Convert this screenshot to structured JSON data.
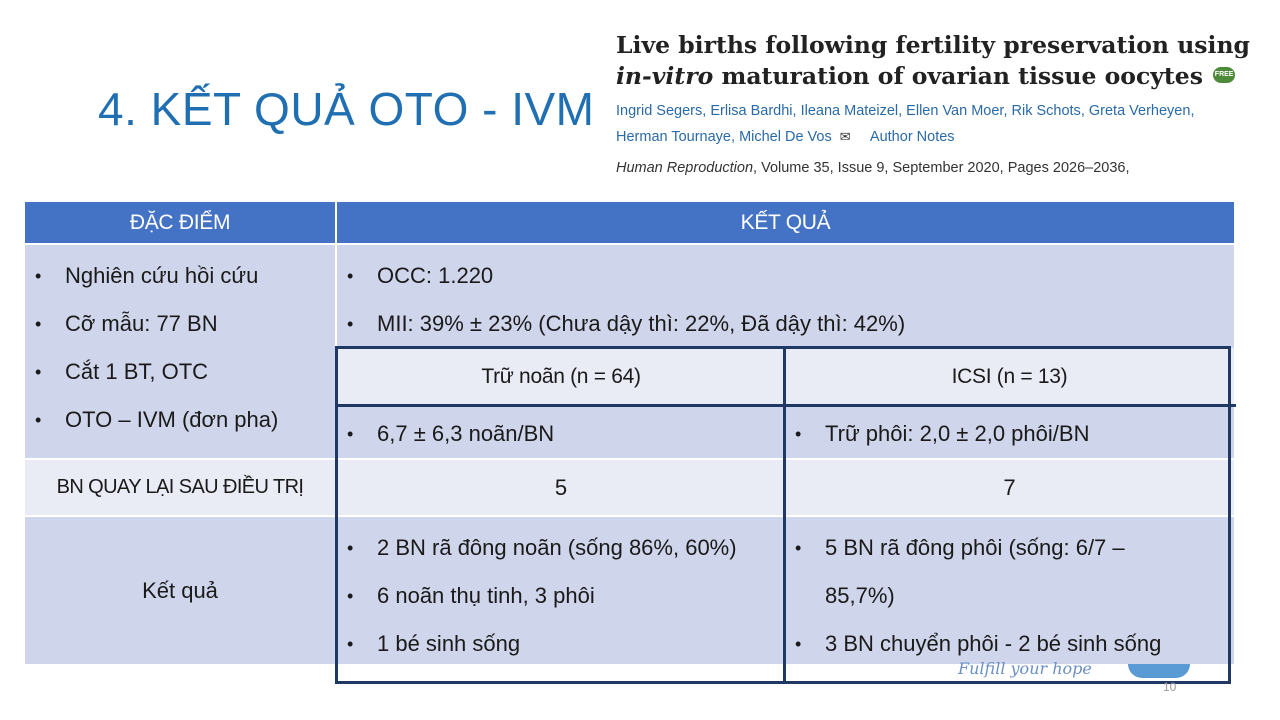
{
  "slide": {
    "title": "4. KẾT QUẢ OTO - IVM",
    "page_number": "10",
    "watermark": "Fulfill your hope"
  },
  "paper": {
    "title_part1": "Live births following fertility preservation using ",
    "title_italic1": "in-vitro",
    "title_part2": " maturation of ovarian tissue oocytes",
    "free_badge": "FREE",
    "authors": [
      "Ingrid Segers",
      "Erlisa Bardhi",
      "Ileana Mateizel",
      "Ellen Van Moer",
      "Rik Schots",
      "Greta Verheyen",
      "Herman Tournaye",
      "Michel De Vos"
    ],
    "author_notes": "Author Notes",
    "journal_name": "Human Reproduction",
    "journal_details": ", Volume 35, Issue 9, September 2020, Pages 2026–2036,"
  },
  "table": {
    "headers": {
      "col1": "ĐẶC ĐIỂM",
      "col2": "KẾT QUẢ"
    },
    "characteristics": [
      "Nghiên cứu hồi cứu",
      "Cỡ mẫu: 77 BN",
      "Cắt 1 BT, OTC",
      "OTO – IVM (đơn pha)"
    ],
    "overall_results": [
      "OCC: 1.220",
      "MII: 39% ± 23% (Chưa dậy thì: 22%, Đã dậy thì: 42%)"
    ],
    "sub_headers": {
      "oocyte": "Trữ noãn (n = 64)",
      "icsi": "ICSI (n = 13)"
    },
    "oocyte_yield": [
      "6,7 ± 6,3 noãn/BN"
    ],
    "icsi_yield": [
      "Trữ phôi: 2,0 ± 2,0 phôi/BN"
    ],
    "return_row": {
      "label": "BN QUAY LẠI SAU ĐIỀU TRỊ",
      "oocyte": "5",
      "icsi": "7"
    },
    "outcome_row": {
      "label": "Kết quả",
      "oocyte": [
        "2 BN rã đông noãn (sống 86%, 60%)",
        "6 noãn thụ tinh, 3 phôi",
        "1 bé sinh sống"
      ],
      "icsi": [
        "5 BN rã đông phôi (sống: 6/7 – 85,7%)",
        "3 BN chuyển phôi - 2 bé sinh sống"
      ]
    }
  }
}
